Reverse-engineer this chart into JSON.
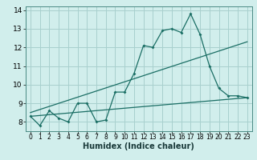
{
  "xlabel": "Humidex (Indice chaleur)",
  "background_color": "#d1eeec",
  "grid_color": "#a8d0ce",
  "line_color": "#1a6e64",
  "spine_color": "#4a8a84",
  "xlim": [
    -0.5,
    23.5
  ],
  "ylim": [
    7.5,
    14.2
  ],
  "yticks": [
    8,
    9,
    10,
    11,
    12,
    13,
    14
  ],
  "xticks": [
    0,
    1,
    2,
    3,
    4,
    5,
    6,
    7,
    8,
    9,
    10,
    11,
    12,
    13,
    14,
    15,
    16,
    17,
    18,
    19,
    20,
    21,
    22,
    23
  ],
  "series1_x": [
    0,
    1,
    2,
    3,
    4,
    5,
    6,
    7,
    8,
    9,
    10,
    11,
    12,
    13,
    14,
    15,
    16,
    17,
    18,
    19,
    20,
    21,
    22,
    23
  ],
  "series1_y": [
    8.3,
    7.8,
    8.6,
    8.2,
    8.0,
    9.0,
    9.0,
    8.0,
    8.1,
    9.6,
    9.6,
    10.6,
    12.1,
    12.0,
    12.9,
    13.0,
    12.8,
    13.8,
    12.7,
    11.0,
    9.8,
    9.4,
    9.4,
    9.3
  ],
  "series2_x": [
    0,
    23
  ],
  "series2_y": [
    8.5,
    12.3
  ],
  "series3_x": [
    0,
    23
  ],
  "series3_y": [
    8.3,
    9.3
  ],
  "xlabel_fontsize": 7,
  "tick_fontsize": 5.5,
  "ytick_fontsize": 6.5
}
